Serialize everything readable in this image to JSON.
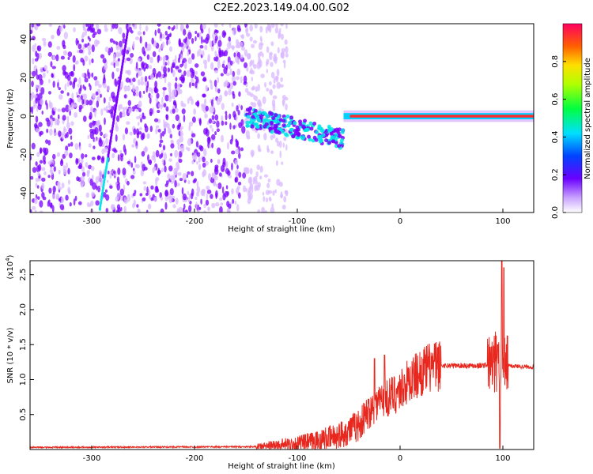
{
  "title": "C2E2.2023.149.04.00.G02",
  "colors": {
    "line": "#e8281e",
    "spectro_low": "#d9b8ff",
    "spectro_mid": "#7a00ff",
    "spectro_cyan": "#00e6e6",
    "spectro_red": "#ff2a2a"
  },
  "chart_data": [
    {
      "type": "heatmap",
      "xlabel": "Height of straight line (km)",
      "ylabel": "Frequency (Hz)",
      "xlim": [
        -360,
        130
      ],
      "ylim": [
        -50,
        48
      ],
      "xticks": [
        -300,
        -200,
        -100,
        0,
        100
      ],
      "yticks": [
        -40,
        -20,
        0,
        20,
        40
      ],
      "colorbar": {
        "label": "Normalized spectral amplitude",
        "range": [
          0,
          1
        ],
        "ticks": [
          0.0,
          0.2,
          0.4,
          0.6,
          0.8
        ],
        "tick_labels": [
          "0.0",
          "0.2",
          "0.4",
          "0.6",
          "0.8"
        ]
      },
      "features": [
        {
          "name": "sweep",
          "x_range": [
            -292,
            -265
          ],
          "y_range": [
            -48,
            44
          ]
        },
        {
          "name": "band",
          "x_range": [
            -150,
            -55
          ],
          "y_center": 0,
          "amplitude": 0.35
        },
        {
          "name": "carrier",
          "x_range": [
            -55,
            130
          ],
          "y_center": 0,
          "amplitude": 0.9
        }
      ]
    },
    {
      "type": "line",
      "xlabel": "Height of straight line (km)",
      "ylabel": "SNR (10 * v/v)",
      "yscale_label": "(x10^4)",
      "xlim": [
        -360,
        130
      ],
      "ylim": [
        0,
        2.7
      ],
      "xticks": [
        -300,
        -200,
        -100,
        0,
        100
      ],
      "yticks": [
        0.5,
        1.0,
        1.5,
        2.0,
        2.5
      ],
      "ytick_labels": [
        "0.5",
        "1.0",
        "1.5",
        "2.0",
        "2.5"
      ],
      "series": [
        {
          "anchors_x": [
            -360,
            -140,
            -120,
            -100,
            -80,
            -60,
            -40,
            -30,
            -20,
            -10,
            0,
            10,
            20,
            30,
            40,
            60,
            80,
            90,
            95,
            100,
            105,
            115,
            130
          ],
          "anchors_y": [
            0.03,
            0.04,
            0.06,
            0.08,
            0.12,
            0.2,
            0.35,
            0.55,
            0.7,
            0.75,
            0.85,
            1.0,
            1.1,
            1.18,
            1.2,
            1.2,
            1.2,
            1.22,
            1.25,
            1.2,
            1.2,
            1.19,
            1.18
          ],
          "spikes": [
            {
              "x": -25,
              "y": 1.3
            },
            {
              "x": -15,
              "y": 1.35
            },
            {
              "x": 95,
              "y": 1.5
            },
            {
              "x": 99,
              "y": 2.7
            },
            {
              "x": 101,
              "y": 2.6
            },
            {
              "x": 97,
              "y": 0.02
            }
          ]
        }
      ]
    }
  ]
}
